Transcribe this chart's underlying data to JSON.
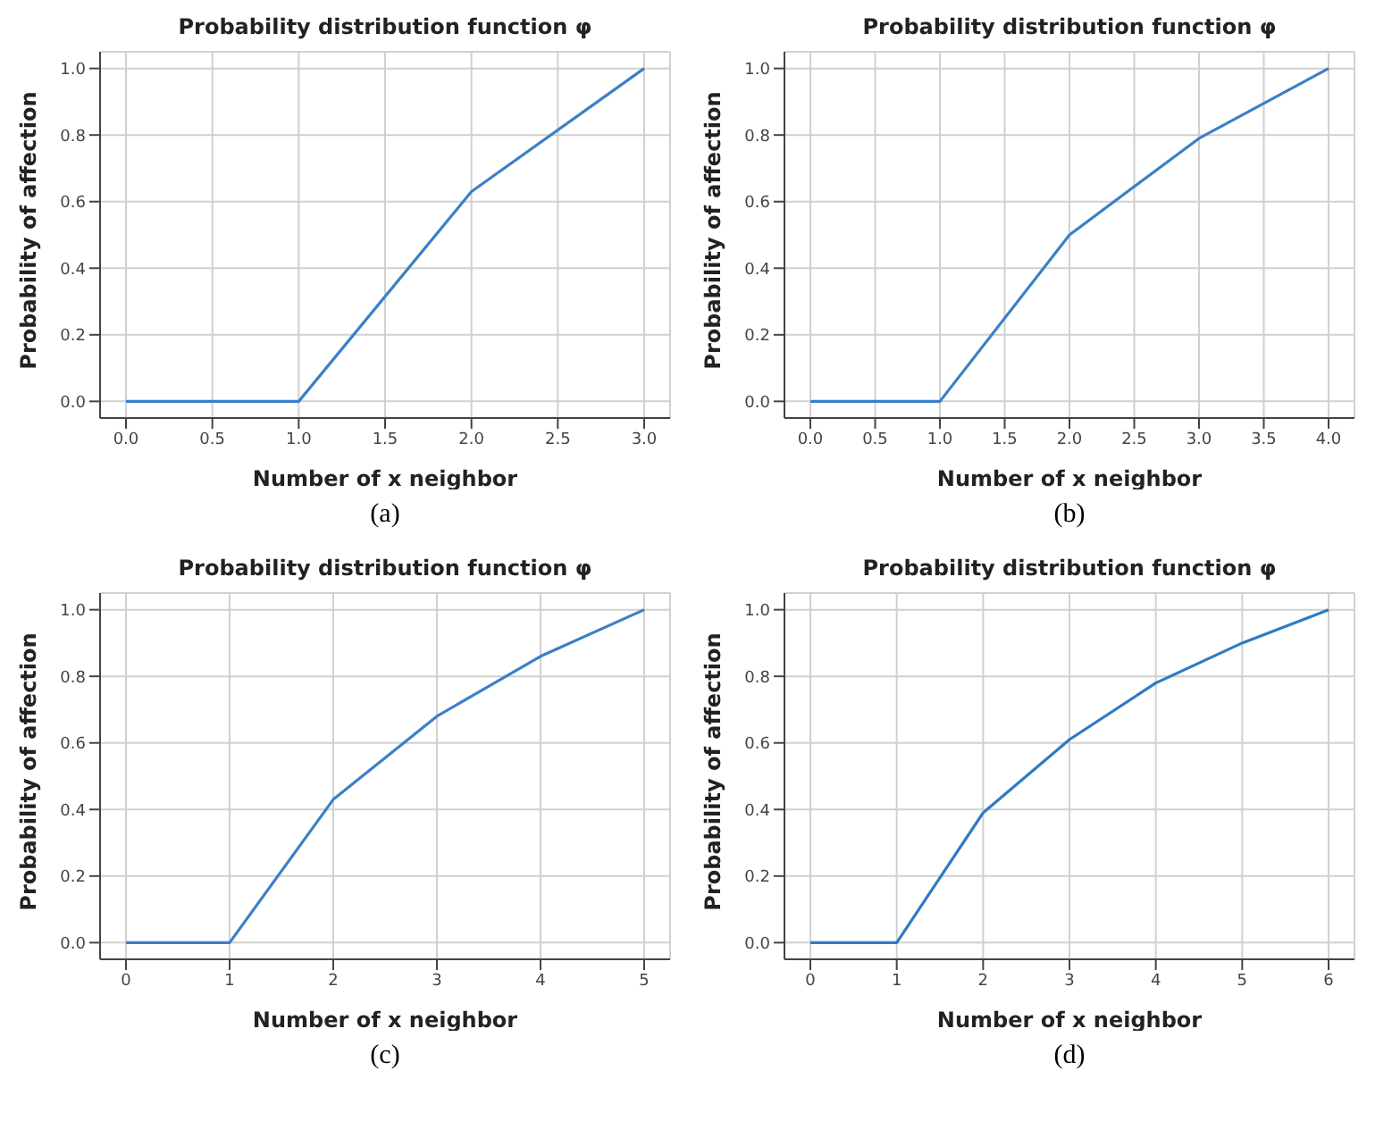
{
  "chart_data": [
    {
      "type": "line",
      "title": "Probability distribution function φ",
      "xlabel": "Number of x neighbor",
      "ylabel": "Probability of affection",
      "annotations": [
        "(a)"
      ],
      "x": [
        0,
        1,
        2,
        3
      ],
      "series": [
        {
          "color": "#3b80c6",
          "values": [
            0,
            0,
            0.63,
            1
          ]
        }
      ],
      "xlim": [
        -0.15,
        3.15
      ],
      "ylim": [
        -0.05,
        1.05
      ],
      "xticks": [
        {
          "value": 0,
          "label": "0.0"
        },
        {
          "value": 0.5,
          "label": "0.5"
        },
        {
          "value": 1,
          "label": "1.0"
        },
        {
          "value": 1.5,
          "label": "1.5"
        },
        {
          "value": 2,
          "label": "2.0"
        },
        {
          "value": 2.5,
          "label": "2.5"
        },
        {
          "value": 3,
          "label": "3.0"
        }
      ],
      "yticks": [
        {
          "value": 0,
          "label": "0.0"
        },
        {
          "value": 0.2,
          "label": "0.2"
        },
        {
          "value": 0.4,
          "label": "0.4"
        },
        {
          "value": 0.6,
          "label": "0.6"
        },
        {
          "value": 0.8,
          "label": "0.8"
        },
        {
          "value": 1,
          "label": "1.0"
        }
      ],
      "grid": true
    },
    {
      "type": "line",
      "title": "Probability distribution function φ",
      "xlabel": "Number of x neighbor",
      "ylabel": "Probability of affection",
      "annotations": [
        "(b)"
      ],
      "x": [
        0,
        1,
        2,
        3,
        4
      ],
      "series": [
        {
          "color": "#3b80c6",
          "values": [
            0,
            0,
            0.5,
            0.79,
            1
          ]
        }
      ],
      "xlim": [
        -0.2,
        4.2
      ],
      "ylim": [
        -0.05,
        1.05
      ],
      "xticks": [
        {
          "value": 0,
          "label": "0.0"
        },
        {
          "value": 0.5,
          "label": "0.5"
        },
        {
          "value": 1,
          "label": "1.0"
        },
        {
          "value": 1.5,
          "label": "1.5"
        },
        {
          "value": 2,
          "label": "2.0"
        },
        {
          "value": 2.5,
          "label": "2.5"
        },
        {
          "value": 3,
          "label": "3.0"
        },
        {
          "value": 3.5,
          "label": "3.5"
        },
        {
          "value": 4,
          "label": "4.0"
        }
      ],
      "yticks": [
        {
          "value": 0,
          "label": "0.0"
        },
        {
          "value": 0.2,
          "label": "0.2"
        },
        {
          "value": 0.4,
          "label": "0.4"
        },
        {
          "value": 0.6,
          "label": "0.6"
        },
        {
          "value": 0.8,
          "label": "0.8"
        },
        {
          "value": 1,
          "label": "1.0"
        }
      ],
      "grid": true
    },
    {
      "type": "line",
      "title": "Probability distribution function φ",
      "xlabel": "Number of x neighbor",
      "ylabel": "Probability of affection",
      "annotations": [
        "(c)"
      ],
      "x": [
        0,
        1,
        2,
        3,
        4,
        5
      ],
      "series": [
        {
          "color": "#3b80c6",
          "values": [
            0,
            0,
            0.43,
            0.68,
            0.86,
            1
          ]
        }
      ],
      "xlim": [
        -0.25,
        5.25
      ],
      "ylim": [
        -0.05,
        1.05
      ],
      "xticks": [
        0,
        1,
        2,
        3,
        4,
        5
      ],
      "yticks": [
        {
          "value": 0,
          "label": "0.0"
        },
        {
          "value": 0.2,
          "label": "0.2"
        },
        {
          "value": 0.4,
          "label": "0.4"
        },
        {
          "value": 0.6,
          "label": "0.6"
        },
        {
          "value": 0.8,
          "label": "0.8"
        },
        {
          "value": 1,
          "label": "1.0"
        }
      ],
      "grid": true
    },
    {
      "type": "line",
      "title": "Probability distribution function φ",
      "xlabel": "Number of x neighbor",
      "ylabel": "Probability of affection",
      "annotations": [
        "(d)"
      ],
      "x": [
        0,
        1,
        2,
        3,
        4,
        5,
        6
      ],
      "series": [
        {
          "color": "#2f7ac4",
          "values": [
            0,
            0,
            0.39,
            0.61,
            0.78,
            0.9,
            1
          ]
        }
      ],
      "xlim": [
        -0.3,
        6.3
      ],
      "ylim": [
        -0.05,
        1.05
      ],
      "xticks": [
        0,
        1,
        2,
        3,
        4,
        5,
        6
      ],
      "yticks": [
        {
          "value": 0,
          "label": "0.0"
        },
        {
          "value": 0.2,
          "label": "0.2"
        },
        {
          "value": 0.4,
          "label": "0.4"
        },
        {
          "value": 0.6,
          "label": "0.6"
        },
        {
          "value": 0.8,
          "label": "0.8"
        },
        {
          "value": 1,
          "label": "1.0"
        }
      ],
      "grid": true
    }
  ]
}
